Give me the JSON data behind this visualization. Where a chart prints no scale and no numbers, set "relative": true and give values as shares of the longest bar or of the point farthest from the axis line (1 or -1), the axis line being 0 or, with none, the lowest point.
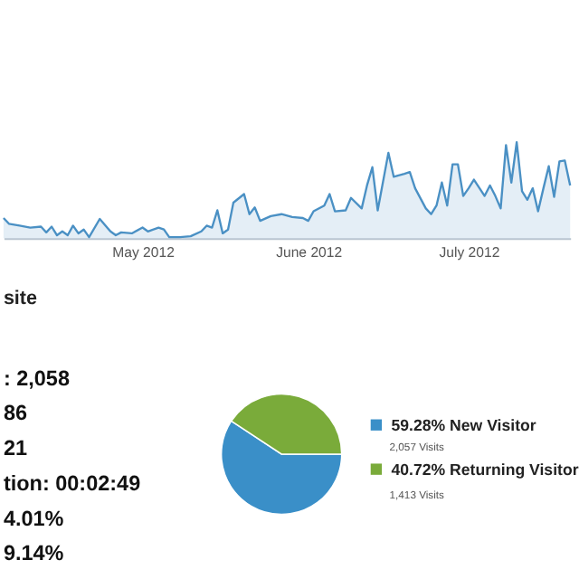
{
  "chart_data": [
    {
      "type": "area",
      "relative": true,
      "color": "#4a90c4",
      "x": [
        "2012-04-05",
        "2012-04-06",
        "2012-04-08",
        "2012-04-10",
        "2012-04-12",
        "2012-04-13",
        "2012-04-14",
        "2012-04-15",
        "2012-04-16",
        "2012-04-17",
        "2012-04-18",
        "2012-04-19",
        "2012-04-20",
        "2012-04-21",
        "2012-04-23",
        "2012-04-25",
        "2012-04-26",
        "2012-04-27",
        "2012-04-29",
        "2012-05-01",
        "2012-05-02",
        "2012-05-04",
        "2012-05-05",
        "2012-05-06",
        "2012-05-08",
        "2012-05-10",
        "2012-05-12",
        "2012-05-13",
        "2012-05-14",
        "2012-05-15",
        "2012-05-16",
        "2012-05-17",
        "2012-05-18",
        "2012-05-20",
        "2012-05-21",
        "2012-05-22",
        "2012-05-23",
        "2012-05-25",
        "2012-05-27",
        "2012-05-29",
        "2012-05-31",
        "2012-06-01",
        "2012-06-02",
        "2012-06-04",
        "2012-06-05",
        "2012-06-06",
        "2012-06-08",
        "2012-06-09",
        "2012-06-11",
        "2012-06-12",
        "2012-06-13",
        "2012-06-14",
        "2012-06-16",
        "2012-06-17",
        "2012-06-19",
        "2012-06-20",
        "2012-06-21",
        "2012-06-23",
        "2012-06-24",
        "2012-06-25",
        "2012-06-26",
        "2012-06-27",
        "2012-06-28",
        "2012-06-29",
        "2012-06-30",
        "2012-07-01",
        "2012-07-02",
        "2012-07-04",
        "2012-07-05",
        "2012-07-06",
        "2012-07-07",
        "2012-07-08",
        "2012-07-09",
        "2012-07-10",
        "2012-07-11",
        "2012-07-12",
        "2012-07-13",
        "2012-07-14",
        "2012-07-15",
        "2012-07-16",
        "2012-07-17",
        "2012-07-18",
        "2012-07-19",
        "2012-07-20"
      ],
      "values": [
        0.21,
        0.15,
        0.13,
        0.11,
        0.12,
        0.06,
        0.12,
        0.03,
        0.07,
        0.03,
        0.13,
        0.05,
        0.09,
        0.01,
        0.2,
        0.07,
        0.03,
        0.06,
        0.05,
        0.11,
        0.07,
        0.11,
        0.09,
        0.01,
        0.01,
        0.02,
        0.07,
        0.13,
        0.11,
        0.29,
        0.05,
        0.09,
        0.37,
        0.46,
        0.25,
        0.32,
        0.18,
        0.23,
        0.25,
        0.22,
        0.21,
        0.18,
        0.28,
        0.34,
        0.46,
        0.28,
        0.29,
        0.42,
        0.31,
        0.55,
        0.74,
        0.29,
        0.89,
        0.64,
        0.67,
        0.69,
        0.52,
        0.31,
        0.25,
        0.34,
        0.58,
        0.34,
        0.77,
        0.77,
        0.44,
        0.52,
        0.61,
        0.44,
        0.55,
        0.44,
        0.31,
        0.97,
        0.58,
        1,
        0.49,
        0.4,
        0.52,
        0.28,
        0.52,
        0.75,
        0.43,
        0.8,
        0.81,
        0.55
      ],
      "xlim": [
        "2012-04-05",
        "2012-07-20"
      ],
      "xticks": [
        {
          "value": "2012-05-01",
          "label": "May 2012"
        },
        {
          "value": "2012-06-01",
          "label": "June 2012"
        },
        {
          "value": "2012-07-01",
          "label": "July 2012"
        }
      ]
    },
    {
      "type": "other",
      "title": "site",
      "annotations": [
        ": 2,058",
        "86",
        "21",
        "tion: 00:02:49",
        "4.01%",
        "9.14%"
      ]
    },
    {
      "type": "pie",
      "categories": [
        "New Visitor",
        "Returning Visitor"
      ],
      "values": [
        59.28,
        40.72
      ],
      "colors": [
        "#3a8fc8",
        "#7aab3a"
      ],
      "value_labels": [
        "59.28%",
        "40.72%"
      ],
      "legend": "right",
      "annotations": [
        "2,057 Visits",
        "1,413 Visits"
      ]
    }
  ]
}
